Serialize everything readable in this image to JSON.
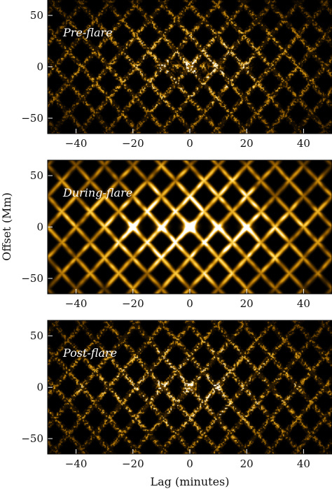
{
  "chart_data": [
    {
      "type": "heatmap",
      "panel_label": "Pre-flare",
      "xlim": [
        -50,
        50
      ],
      "ylim": [
        -65,
        65
      ],
      "xticks": [
        -40,
        -20,
        0,
        20,
        40
      ],
      "yticks": [
        -50,
        0,
        50
      ],
      "colormap": [
        "#000000",
        "#3a2400",
        "#8a5600",
        "#d99a10",
        "#ffd24a",
        "#ffffff"
      ],
      "features": {
        "stripe_period_min": 9.5,
        "stripe_slope": 3.2,
        "peak_lags_min": [
          -10,
          -5,
          0,
          5,
          10,
          20
        ],
        "texture": "speckled",
        "intensity": 0.55
      }
    },
    {
      "type": "heatmap",
      "panel_label": "During-flare",
      "xlim": [
        -50,
        50
      ],
      "ylim": [
        -65,
        65
      ],
      "xticks": [
        -40,
        -20,
        0,
        20,
        40
      ],
      "yticks": [
        -50,
        0,
        50
      ],
      "colormap": [
        "#000000",
        "#3a2400",
        "#8a5600",
        "#d99a10",
        "#ffd24a",
        "#ffffff"
      ],
      "features": {
        "stripe_period_min": 10,
        "stripe_slope": 3.0,
        "peak_lags_min": [
          -20,
          -10,
          0,
          10,
          20
        ],
        "texture": "smooth",
        "intensity": 1.0
      }
    },
    {
      "type": "heatmap",
      "panel_label": "Post-flare",
      "xlim": [
        -50,
        50
      ],
      "ylim": [
        -65,
        65
      ],
      "xticks": [
        -40,
        -20,
        0,
        20,
        40
      ],
      "yticks": [
        -50,
        0,
        50
      ],
      "colormap": [
        "#000000",
        "#3a2400",
        "#8a5600",
        "#d99a10",
        "#ffd24a",
        "#ffffff"
      ],
      "features": {
        "stripe_period_min": 9.5,
        "stripe_slope": 3.2,
        "peak_lags_min": [
          -38,
          -10,
          0,
          10,
          38
        ],
        "texture": "speckled",
        "intensity": 0.6
      }
    }
  ],
  "shared": {
    "xlabel": "Lag (minutes)",
    "ylabel": "Offset (Mm)"
  }
}
